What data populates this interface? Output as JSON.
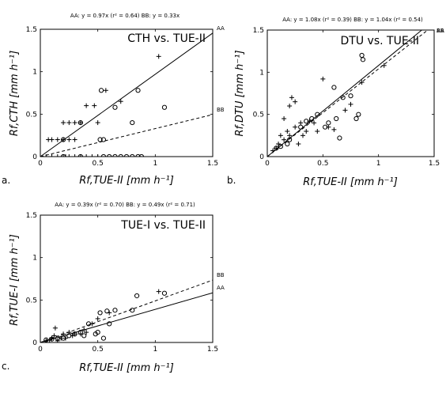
{
  "chart_data": [
    {
      "id": "a",
      "type": "scatter",
      "panel_label": "a.",
      "title": "CTH vs. TUE-II",
      "equations": "AA: y = 0.97x (r² = 0.64)     BB: y = 0.33x",
      "xlabel": "Rf,TUE-II [mm h⁻¹]",
      "ylabel": "Rf,CTH [mm h⁻¹]",
      "xlim": [
        0,
        1.5
      ],
      "ylim": [
        0,
        1.5
      ],
      "xticks": [
        "0",
        "0.5",
        "1",
        "1.5"
      ],
      "yticks": [
        "0",
        "0.5",
        "1",
        "1.5"
      ],
      "lines": [
        {
          "name": "AA",
          "slope": 0.97,
          "style": "solid"
        },
        {
          "name": "BB",
          "slope": 0.33,
          "style": "dashed"
        }
      ],
      "series": [
        {
          "marker": "plus",
          "points": [
            [
              0.07,
              0.2
            ],
            [
              0.1,
              0.2
            ],
            [
              0.15,
              0.2
            ],
            [
              0.2,
              0.2
            ],
            [
              0.25,
              0.2
            ],
            [
              0.3,
              0.2
            ],
            [
              0.2,
              0.4
            ],
            [
              0.25,
              0.4
            ],
            [
              0.3,
              0.4
            ],
            [
              0.35,
              0.4
            ],
            [
              0.4,
              0.6
            ],
            [
              0.47,
              0.6
            ],
            [
              0.5,
              0.4
            ],
            [
              0.57,
              0.78
            ],
            [
              0.7,
              0.65
            ],
            [
              1.03,
              1.18
            ],
            [
              0.05,
              0
            ],
            [
              0.1,
              0
            ],
            [
              0.15,
              0
            ],
            [
              0.2,
              0
            ],
            [
              0.22,
              0
            ],
            [
              0.25,
              0
            ],
            [
              0.3,
              0
            ],
            [
              0.35,
              0
            ],
            [
              0.4,
              0
            ],
            [
              0.45,
              0
            ],
            [
              0.5,
              0
            ]
          ]
        },
        {
          "marker": "circle",
          "points": [
            [
              0.2,
              0.2
            ],
            [
              0.35,
              0.4
            ],
            [
              0.52,
              0.2
            ],
            [
              0.55,
              0.2
            ],
            [
              0.53,
              0.78
            ],
            [
              0.65,
              0.58
            ],
            [
              0.8,
              0.4
            ],
            [
              0.85,
              0.78
            ],
            [
              1.08,
              0.58
            ],
            [
              0.2,
              0
            ],
            [
              0.55,
              0
            ],
            [
              0.6,
              0
            ],
            [
              0.65,
              0
            ],
            [
              0.7,
              0
            ],
            [
              0.75,
              0
            ],
            [
              0.8,
              0
            ],
            [
              0.85,
              0
            ],
            [
              0.88,
              0
            ],
            [
              0.35,
              0
            ]
          ]
        }
      ]
    },
    {
      "id": "b",
      "type": "scatter",
      "panel_label": "b.",
      "title": "DTU vs. TUE-II",
      "equations": "AA: y = 1.08x (r² = 0.39)     BB: y = 1.04x (r² = 0.54)",
      "xlabel": "Rf,TUE-II [mm h⁻¹]",
      "ylabel": "Rf,DTU [mm h⁻¹]",
      "xlim": [
        0,
        1.5
      ],
      "ylim": [
        0,
        1.5
      ],
      "xticks": [
        "0",
        "0.5",
        "1",
        "1.5"
      ],
      "yticks": [
        "0",
        "0.5",
        "1",
        "1.5"
      ],
      "lines": [
        {
          "name": "AA",
          "slope": 1.08,
          "style": "solid"
        },
        {
          "name": "BB",
          "slope": 1.04,
          "style": "dashed"
        }
      ],
      "series": [
        {
          "marker": "plus",
          "points": [
            [
              0.05,
              0.07
            ],
            [
              0.08,
              0.1
            ],
            [
              0.1,
              0.15
            ],
            [
              0.12,
              0.25
            ],
            [
              0.15,
              0.2
            ],
            [
              0.15,
              0.45
            ],
            [
              0.18,
              0.3
            ],
            [
              0.2,
              0.25
            ],
            [
              0.2,
              0.6
            ],
            [
              0.22,
              0.7
            ],
            [
              0.25,
              0.35
            ],
            [
              0.25,
              0.65
            ],
            [
              0.28,
              0.15
            ],
            [
              0.3,
              0.4
            ],
            [
              0.32,
              0.25
            ],
            [
              0.35,
              0.3
            ],
            [
              0.38,
              0.42
            ],
            [
              0.42,
              0.4
            ],
            [
              0.45,
              0.3
            ],
            [
              0.5,
              0.92
            ],
            [
              0.55,
              0.35
            ],
            [
              0.6,
              0.32
            ],
            [
              0.7,
              0.55
            ],
            [
              0.75,
              0.62
            ],
            [
              0.85,
              0.88
            ],
            [
              1.05,
              1.08
            ]
          ]
        },
        {
          "marker": "circle",
          "points": [
            [
              0.08,
              0.1
            ],
            [
              0.12,
              0.12
            ],
            [
              0.18,
              0.15
            ],
            [
              0.2,
              0.2
            ],
            [
              0.3,
              0.35
            ],
            [
              0.35,
              0.42
            ],
            [
              0.4,
              0.45
            ],
            [
              0.45,
              0.5
            ],
            [
              0.52,
              0.35
            ],
            [
              0.55,
              0.4
            ],
            [
              0.6,
              0.82
            ],
            [
              0.62,
              0.45
            ],
            [
              0.65,
              0.22
            ],
            [
              0.68,
              0.7
            ],
            [
              0.75,
              0.72
            ],
            [
              0.8,
              0.45
            ],
            [
              0.82,
              0.5
            ],
            [
              0.85,
              1.2
            ],
            [
              0.86,
              1.15
            ]
          ]
        }
      ]
    },
    {
      "id": "c",
      "type": "scatter",
      "panel_label": "c.",
      "title": "TUE-I vs. TUE-II",
      "equations": "AA: y = 0.39x (r² = 0.70)     BB: y = 0.49x (r² = 0.71)",
      "xlabel": "Rf,TUE-II [mm h⁻¹]",
      "ylabel": "Rf,TUE-I [mm h⁻¹]",
      "xlim": [
        0,
        1.5
      ],
      "ylim": [
        0,
        1.5
      ],
      "xticks": [
        "0",
        "0.5",
        "1",
        "1.5"
      ],
      "yticks": [
        "0",
        "0.5",
        "1",
        "1.5"
      ],
      "lines": [
        {
          "name": "AA",
          "slope": 0.39,
          "style": "solid"
        },
        {
          "name": "BB",
          "slope": 0.49,
          "style": "dashed"
        }
      ],
      "series": [
        {
          "marker": "plus",
          "points": [
            [
              0.05,
              0.02
            ],
            [
              0.08,
              0.03
            ],
            [
              0.1,
              0.05
            ],
            [
              0.12,
              0.08
            ],
            [
              0.13,
              0.17
            ],
            [
              0.15,
              0.02
            ],
            [
              0.18,
              0.05
            ],
            [
              0.2,
              0.1
            ],
            [
              0.22,
              0.05
            ],
            [
              0.25,
              0.12
            ],
            [
              0.28,
              0.08
            ],
            [
              0.3,
              0.1
            ],
            [
              0.35,
              0.1
            ],
            [
              0.38,
              0.15
            ],
            [
              0.4,
              0.12
            ],
            [
              0.45,
              0.22
            ],
            [
              0.5,
              0.28
            ],
            [
              0.6,
              0.35
            ],
            [
              1.03,
              0.6
            ]
          ]
        },
        {
          "marker": "circle",
          "points": [
            [
              0.05,
              0.03
            ],
            [
              0.1,
              0.04
            ],
            [
              0.15,
              0.05
            ],
            [
              0.2,
              0.05
            ],
            [
              0.25,
              0.08
            ],
            [
              0.3,
              0.1
            ],
            [
              0.35,
              0.12
            ],
            [
              0.38,
              0.08
            ],
            [
              0.42,
              0.22
            ],
            [
              0.48,
              0.1
            ],
            [
              0.5,
              0.12
            ],
            [
              0.52,
              0.35
            ],
            [
              0.55,
              0.05
            ],
            [
              0.58,
              0.37
            ],
            [
              0.6,
              0.22
            ],
            [
              0.65,
              0.38
            ],
            [
              0.8,
              0.38
            ],
            [
              0.84,
              0.55
            ],
            [
              1.08,
              0.58
            ]
          ]
        }
      ]
    }
  ]
}
